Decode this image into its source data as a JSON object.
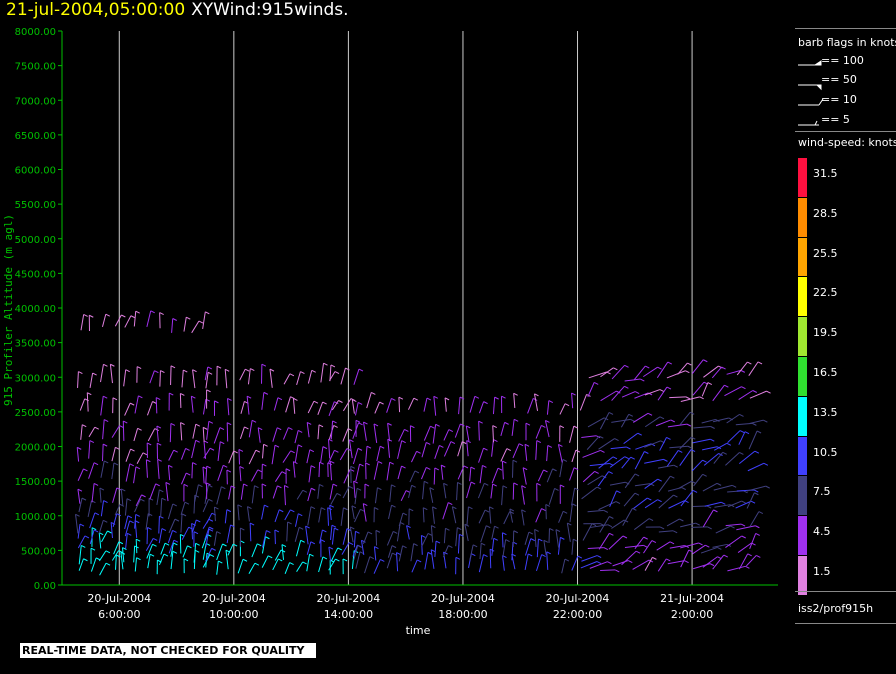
{
  "header": {
    "date": "21-jul-2004,05:00:00",
    "title": "XYWind:915winds."
  },
  "footer": {
    "note": "REAL-TIME DATA, NOT CHECKED FOR QUALITY"
  },
  "source_label": "iss2/prof915h",
  "legend": {
    "barb_title": "barb flags in knots",
    "barb_items": [
      "== 100",
      "== 50",
      "== 10",
      "== 5"
    ],
    "speed_title": "wind-speed: knots",
    "speed_levels": [
      {
        "label": "31.5",
        "color": "#ff1040"
      },
      {
        "label": "28.5",
        "color": "#ff8c00"
      },
      {
        "label": "25.5",
        "color": "#ffa500"
      },
      {
        "label": "22.5",
        "color": "#ffff00"
      },
      {
        "label": "19.5",
        "color": "#a0e830"
      },
      {
        "label": "16.5",
        "color": "#30e030"
      },
      {
        "label": "13.5",
        "color": "#00ffff"
      },
      {
        "label": "10.5",
        "color": "#4040ff"
      },
      {
        "label": "7.5",
        "color": "#404080"
      },
      {
        "label": "4.5",
        "color": "#a030f0"
      },
      {
        "label": "1.5",
        "color": "#e080e0"
      }
    ]
  },
  "chart_data": {
    "type": "scatter",
    "title": "XYWind:915winds.",
    "xlabel": "time",
    "ylabel": "915 Profiler Altitude (m agl)",
    "ylim": [
      0,
      8000
    ],
    "y_ticks": [
      "0.00",
      "500.00",
      "1000.00",
      "1500.00",
      "2000.00",
      "2500.00",
      "3000.00",
      "3500.00",
      "4000.00",
      "4500.00",
      "5000.00",
      "5500.00",
      "6000.00",
      "6500.00",
      "7000.00",
      "7500.00",
      "8000.00"
    ],
    "x_ticks": [
      {
        "date": "20-Jul-2004",
        "time": "6:00:00"
      },
      {
        "date": "20-Jul-2004",
        "time": "10:00:00"
      },
      {
        "date": "20-Jul-2004",
        "time": "14:00:00"
      },
      {
        "date": "20-Jul-2004",
        "time": "18:00:00"
      },
      {
        "date": "20-Jul-2004",
        "time": "22:00:00"
      },
      {
        "date": "21-Jul-2004",
        "time": "2:00:00"
      }
    ],
    "xlim": [
      "2004-07-20 04:00",
      "2004-07-21 05:00"
    ],
    "grid": "vertical",
    "series": [
      {
        "hours": [
          4.6,
          5.8,
          7.0,
          8.2
        ],
        "levels": [
          {
            "y": 200,
            "speed": 13.5
          },
          {
            "y": 350,
            "speed": 13.5
          },
          {
            "y": 500,
            "speed": 12
          },
          {
            "y": 650,
            "speed": 11
          },
          {
            "y": 800,
            "speed": 10
          },
          {
            "y": 1000,
            "speed": 8
          },
          {
            "y": 1200,
            "speed": 6
          },
          {
            "y": 1500,
            "speed": 5
          },
          {
            "y": 1800,
            "speed": 4
          },
          {
            "y": 2100,
            "speed": 3
          },
          {
            "y": 2500,
            "speed": 3
          },
          {
            "y": 2900,
            "speed": 2
          },
          {
            "y": 3700,
            "speed": 2
          }
        ]
      },
      {
        "hours": [
          9.0,
          10.2,
          11.4,
          12.6,
          13.4
        ],
        "levels": [
          {
            "y": 200,
            "speed": 13.5
          },
          {
            "y": 400,
            "speed": 12
          },
          {
            "y": 600,
            "speed": 10
          },
          {
            "y": 900,
            "speed": 9
          },
          {
            "y": 1200,
            "speed": 6
          },
          {
            "y": 1500,
            "speed": 5
          },
          {
            "y": 1800,
            "speed": 4
          },
          {
            "y": 2100,
            "speed": 3
          },
          {
            "y": 2500,
            "speed": 3
          },
          {
            "y": 2900,
            "speed": 2
          }
        ]
      },
      {
        "hours": [
          14.2,
          15.4,
          16.6,
          17.8,
          19.0,
          20.2,
          21.4
        ],
        "levels": [
          {
            "y": 200,
            "speed": 10
          },
          {
            "y": 400,
            "speed": 9
          },
          {
            "y": 600,
            "speed": 8
          },
          {
            "y": 900,
            "speed": 7
          },
          {
            "y": 1200,
            "speed": 6
          },
          {
            "y": 1500,
            "speed": 5
          },
          {
            "y": 1800,
            "speed": 4
          },
          {
            "y": 2100,
            "speed": 4
          },
          {
            "y": 2500,
            "speed": 3
          }
        ]
      },
      {
        "hours": [
          22.4,
          23.6,
          24.8,
          26.0,
          27.2
        ],
        "levels": [
          {
            "y": 250,
            "speed": 4
          },
          {
            "y": 500,
            "speed": 5
          },
          {
            "y": 800,
            "speed": 7
          },
          {
            "y": 1100,
            "speed": 8
          },
          {
            "y": 1400,
            "speed": 9
          },
          {
            "y": 1700,
            "speed": 10
          },
          {
            "y": 2000,
            "speed": 9
          },
          {
            "y": 2300,
            "speed": 7
          },
          {
            "y": 2700,
            "speed": 4
          },
          {
            "y": 3000,
            "speed": 3
          }
        ]
      }
    ]
  }
}
